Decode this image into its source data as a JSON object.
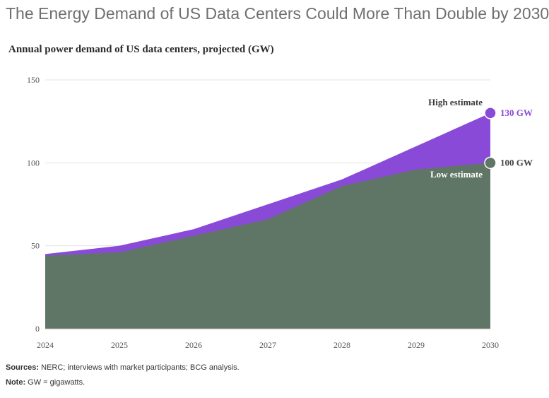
{
  "header": {
    "title": "The Energy Demand of US Data Centers Could More Than Double by 2030",
    "subtitle": "Annual power demand of US data centers, projected (GW)"
  },
  "footer": {
    "sources_label": "Sources:",
    "sources_text": "NERC; interviews with market participants; BCG analysis.",
    "note_label": "Note:",
    "note_text": "GW = gigawatts."
  },
  "colors": {
    "high": "#8a4ad8",
    "low": "#5f7666",
    "grid": "#e3e3e3"
  },
  "chart_data": {
    "type": "area",
    "title": "Annual power demand of US data centers, projected (GW)",
    "xlabel": "",
    "ylabel": "",
    "x": [
      "2024",
      "2025",
      "2026",
      "2027",
      "2028",
      "2029",
      "2030"
    ],
    "ylim": [
      0,
      150
    ],
    "yticks": [
      0,
      50,
      100,
      150
    ],
    "grid": true,
    "series": [
      {
        "name": "High estimate",
        "values": [
          45,
          50,
          60,
          75,
          90,
          110,
          130
        ],
        "end_label": "130 GW"
      },
      {
        "name": "Low estimate",
        "values": [
          44,
          46,
          56,
          66,
          86,
          96,
          100
        ],
        "end_label": "100 GW"
      }
    ]
  }
}
